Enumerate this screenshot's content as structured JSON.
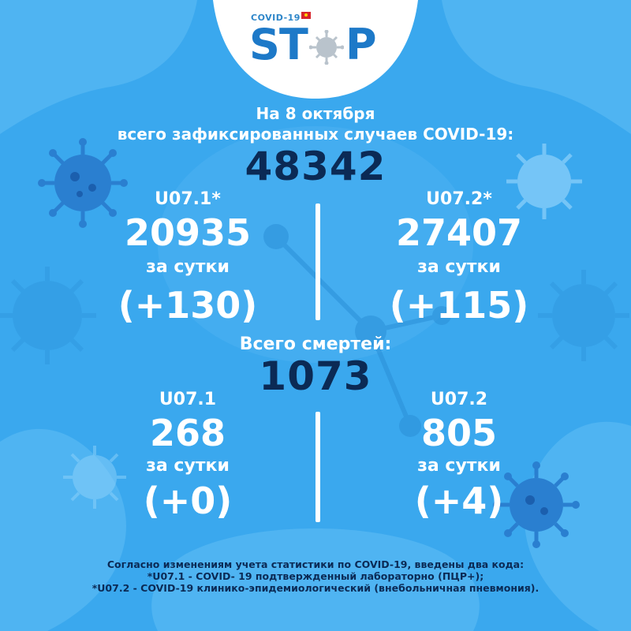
{
  "logo": {
    "small_text": "COVID-19",
    "letters": [
      "S",
      "T",
      "P"
    ]
  },
  "header": {
    "date_line": "На 8 октября",
    "subtitle": "всего зафиксированных случаев COVID-19:",
    "total_cases": "48342"
  },
  "cases": {
    "left": {
      "code": "U07.1*",
      "total": "20935",
      "per_day_label": "за сутки",
      "delta": "(+130)"
    },
    "right": {
      "code": "U07.2*",
      "total": "27407",
      "per_day_label": "за сутки",
      "delta": "(+115)"
    }
  },
  "deaths": {
    "label": "Всего смертей:",
    "total": "1073",
    "left": {
      "code": "U07.1",
      "total": "268",
      "per_day_label": "за сутки",
      "delta": "(+0)"
    },
    "right": {
      "code": "U07.2",
      "total": "805",
      "per_day_label": "за сутки",
      "delta": "(+4)"
    }
  },
  "footer": {
    "line1": "Согласно изменениям учета статистики по COVID-19, введены два кода:",
    "line2": "*U07.1 - COVID- 19 подтвержденный лабораторно (ПЦР+);",
    "line3": "*U07.2 - COVID-19 клинико-эпидемиологический (внебольничная пневмония)."
  },
  "colors": {
    "background": "#3aa8ee",
    "shape": "#6dc3f7",
    "navy": "#0b2a55",
    "logo_blue": "#1d79c8",
    "virus": "#8fd2fb",
    "virus_dark": "#2a8fd8"
  },
  "icons": [
    "virus-icon",
    "virus-icon",
    "virus-icon",
    "virus-icon",
    "virus-icon",
    "molecule-icon"
  ]
}
